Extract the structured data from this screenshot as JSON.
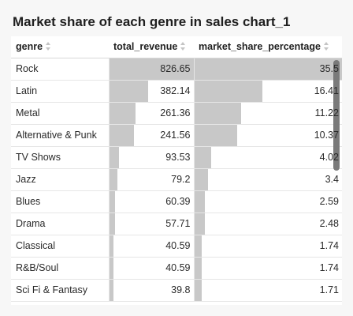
{
  "title": "Market share of each genre in sales chart_1",
  "columns": [
    "genre",
    "total_revenue",
    "market_share_percentage"
  ],
  "rows": [
    {
      "genre": "Rock",
      "total_revenue": "826.65",
      "market_share_percentage": "35.5"
    },
    {
      "genre": "Latin",
      "total_revenue": "382.14",
      "market_share_percentage": "16.41"
    },
    {
      "genre": "Metal",
      "total_revenue": "261.36",
      "market_share_percentage": "11.22"
    },
    {
      "genre": "Alternative & Punk",
      "total_revenue": "241.56",
      "market_share_percentage": "10.37"
    },
    {
      "genre": "TV Shows",
      "total_revenue": "93.53",
      "market_share_percentage": "4.02"
    },
    {
      "genre": "Jazz",
      "total_revenue": "79.2",
      "market_share_percentage": "3.4"
    },
    {
      "genre": "Blues",
      "total_revenue": "60.39",
      "market_share_percentage": "2.59"
    },
    {
      "genre": "Drama",
      "total_revenue": "57.71",
      "market_share_percentage": "2.48"
    },
    {
      "genre": "Classical",
      "total_revenue": "40.59",
      "market_share_percentage": "1.74"
    },
    {
      "genre": "R&B/Soul",
      "total_revenue": "40.59",
      "market_share_percentage": "1.74"
    },
    {
      "genre": "Sci Fi & Fantasy",
      "total_revenue": "39.8",
      "market_share_percentage": "1.71"
    }
  ],
  "colors": {
    "bar": "#c8c8c8",
    "scrollbar": "#7a7a7a"
  },
  "icons": {
    "sort": "sort-arrows-icon"
  }
}
